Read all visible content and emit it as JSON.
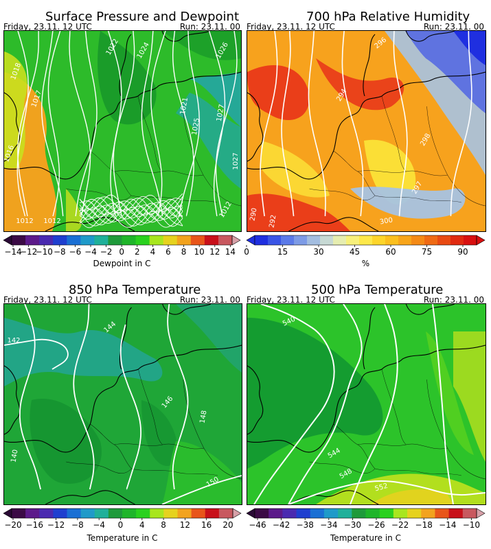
{
  "panels": [
    {
      "id": "p1",
      "title": "Surface Pressure and Dewpoint",
      "valid": "Friday, 23.11. 12 UTC",
      "run": "Run: 23.11. 00",
      "cbar_label": "Dewpoint in C",
      "cbar_ticks": [
        "−14",
        "−12",
        "−10",
        "−8",
        "−6",
        "−4",
        "−2",
        "0",
        "2",
        "4",
        "6",
        "8",
        "10",
        "12",
        "14"
      ],
      "cbar_colors": [
        "#3b0a45",
        "#5c1a8a",
        "#4a2ab0",
        "#1f3fcf",
        "#1a6fd4",
        "#1f9ac9",
        "#20b09a",
        "#1f9a3b",
        "#1fb52a",
        "#2ad11e",
        "#a8e61e",
        "#e6d21e",
        "#f2a31e",
        "#e8551a",
        "#c8101a",
        "#c8585f"
      ],
      "contour_labels": [
        "1022",
        "1024",
        "1026",
        "1021",
        "1027",
        "1025",
        "1017",
        "1012",
        "1012",
        "1016",
        "1027",
        "1012",
        "1018"
      ],
      "colors": {
        "base": "#2dbb2a",
        "warm": "#f0a21e",
        "yellow": "#c8e01e",
        "teal": "#25a897",
        "dark": "#128f2a"
      }
    },
    {
      "id": "p2",
      "title": "700 hPa Relative Humidity",
      "valid": "Friday, 23.11. 12 UTC",
      "run": "Run: 23.11. 00",
      "cbar_label": "%",
      "cbar_ticks": [
        "0",
        "15",
        "30",
        "45",
        "60",
        "75",
        "90"
      ],
      "cbar_colors": [
        "#1f2fe0",
        "#3a55e6",
        "#5b7ae8",
        "#7d9be6",
        "#a3bde0",
        "#c7d9d4",
        "#e6edb0",
        "#f7f07a",
        "#fde84a",
        "#fdd52a",
        "#fbbf1e",
        "#f8a51a",
        "#f48a16",
        "#ef6a14",
        "#e84a12",
        "#e02a10",
        "#d81010"
      ],
      "contour_labels": [
        "296",
        "294",
        "298",
        "290",
        "292",
        "300",
        "297"
      ],
      "colors": {
        "base": "#f7a21d",
        "red": "#e8331a",
        "yellow": "#fbe53a",
        "blue": "#5b6fe0",
        "lightblue": "#a6c3e3"
      }
    },
    {
      "id": "p3",
      "title": "850 hPa Temperature",
      "valid": "Friday, 23.11. 12 UTC",
      "run": "Run: 23.11. 00",
      "cbar_label": "Temperature in C",
      "cbar_ticks": [
        "−20",
        "−16",
        "−12",
        "−8",
        "−4",
        "0",
        "4",
        "8",
        "12",
        "16",
        "20"
      ],
      "cbar_colors": [
        "#3b0a45",
        "#5c1a8a",
        "#4a2ab0",
        "#1f3fcf",
        "#1a6fd4",
        "#1f9ac9",
        "#20b09a",
        "#1f9a3b",
        "#1fb52a",
        "#2ad11e",
        "#a8e61e",
        "#e6d21e",
        "#f2a31e",
        "#e8551a",
        "#c8101a",
        "#c8585f"
      ],
      "contour_labels": [
        "142",
        "144",
        "146",
        "148",
        "140",
        "150"
      ],
      "colors": {
        "base": "#1fa637",
        "teal": "#23a48a",
        "light": "#2dc22a",
        "dark": "#12902f"
      }
    },
    {
      "id": "p4",
      "title": "500 hPa Temperature",
      "valid": "Friday, 23.11. 12 UTC",
      "run": "Run: 23.11. 00",
      "cbar_label": "Temperature in C",
      "cbar_ticks": [
        "−46",
        "−42",
        "−38",
        "−34",
        "−30",
        "−26",
        "−22",
        "−18",
        "−14",
        "−10"
      ],
      "cbar_colors": [
        "#3b0a45",
        "#5c1a8a",
        "#4a2ab0",
        "#1f3fcf",
        "#1a6fd4",
        "#1f9ac9",
        "#20b09a",
        "#1f9a3b",
        "#1fb52a",
        "#2ad11e",
        "#a8e61e",
        "#e6d21e",
        "#f2a31e",
        "#e8551a",
        "#c8101a",
        "#c8585f"
      ],
      "contour_labels": [
        "540",
        "544",
        "548",
        "552"
      ],
      "colors": {
        "base": "#2cc32a",
        "dark": "#139a30",
        "yellow": "#b9e01e",
        "lime": "#5fd41e"
      }
    }
  ]
}
